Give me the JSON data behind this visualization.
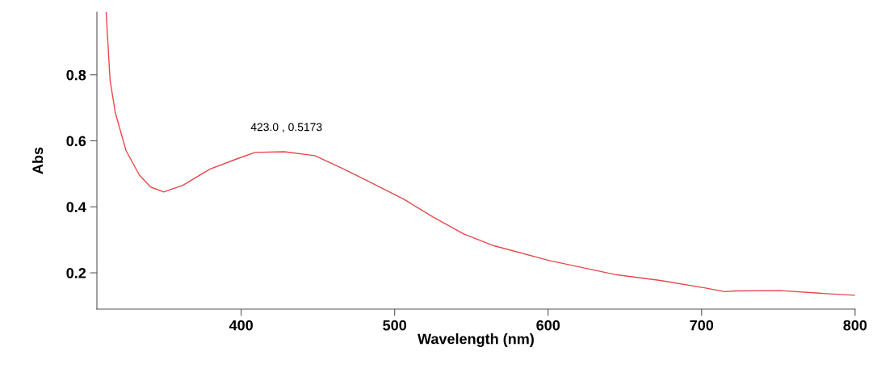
{
  "chart_data": {
    "type": "line",
    "xlabel": "Wavelength (nm)",
    "ylabel": "Abs",
    "x": [
      312,
      314.6,
      318,
      325,
      333.7,
      341,
      349.5,
      362,
      379.5,
      397,
      409,
      428,
      448,
      467,
      486,
      506,
      525,
      545,
      564.7,
      600.8,
      643.5,
      673,
      702.5,
      715,
      722,
      751.6,
      781,
      800
    ],
    "series": [
      {
        "color": "#e8474a",
        "values": [
          0.99,
          0.783,
          0.685,
          0.57,
          0.496,
          0.46,
          0.445,
          0.465,
          0.514,
          0.545,
          0.565,
          0.567,
          0.555,
          0.514,
          0.47,
          0.423,
          0.369,
          0.318,
          0.282,
          0.237,
          0.195,
          0.177,
          0.154,
          0.143,
          0.145,
          0.146,
          0.137,
          0.132
        ]
      }
    ],
    "xlim": [
      306,
      800
    ],
    "ylim": [
      0.09,
      0.99
    ],
    "xticks": [
      400,
      500,
      600,
      700,
      800
    ],
    "yticks": [
      0.2,
      0.4,
      0.6,
      0.8
    ],
    "annotations": [
      "423.0 , 0.5173"
    ],
    "grid": false,
    "legend": false,
    "marker": "none",
    "line_style": "solid"
  }
}
